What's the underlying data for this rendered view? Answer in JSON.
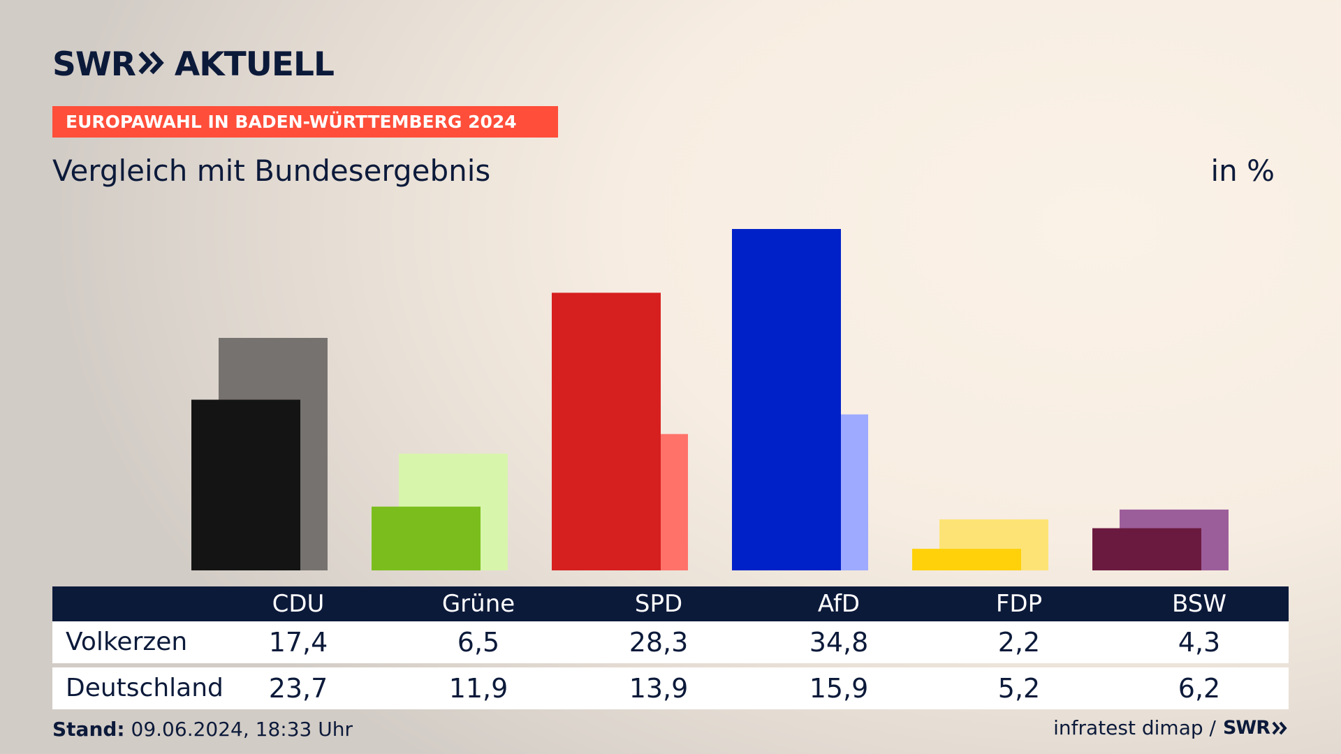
{
  "header": {
    "logo_brand": "SWR",
    "logo_product": "AKTUELL",
    "banner": "EUROPAWAHL IN BADEN-WÜRTTEMBERG 2024",
    "subtitle": "Vergleich mit Bundesergebnis",
    "unit": "in %"
  },
  "colors": {
    "primary": [
      "#141414",
      "#7ABD1C",
      "#D61F1F",
      "#0021C8",
      "#FFD10A",
      "#6B1A3F"
    ],
    "secondary": [
      "#76726F",
      "#D8F5AC",
      "#FF726A",
      "#9EAAFF",
      "#FDE375",
      "#9C5E9A"
    ],
    "header_bar": "#0C1A3A",
    "banner": "#FF4E3A"
  },
  "chart_data": {
    "type": "bar",
    "categories": [
      "CDU",
      "Grüne",
      "SPD",
      "AfD",
      "FDP",
      "BSW"
    ],
    "series": [
      {
        "name": "Volkerzen",
        "values": [
          17.4,
          6.5,
          28.3,
          34.8,
          2.2,
          4.3
        ]
      },
      {
        "name": "Deutschland",
        "values": [
          23.7,
          11.9,
          13.9,
          15.9,
          5.2,
          6.2
        ]
      }
    ],
    "ylim": [
      0,
      34.8
    ],
    "grid": false
  },
  "table": {
    "rows": [
      {
        "label": "Volkerzen",
        "values": [
          "17,4",
          "6,5",
          "28,3",
          "34,8",
          "2,2",
          "4,3"
        ]
      },
      {
        "label": "Deutschland",
        "values": [
          "23,7",
          "11,9",
          "13,9",
          "15,9",
          "5,2",
          "6,2"
        ]
      }
    ]
  },
  "footer": {
    "stand_label": "Stand:",
    "stand_value": "09.06.2024, 18:33 Uhr",
    "source": "infratest dimap /",
    "source_logo": "SWR"
  }
}
